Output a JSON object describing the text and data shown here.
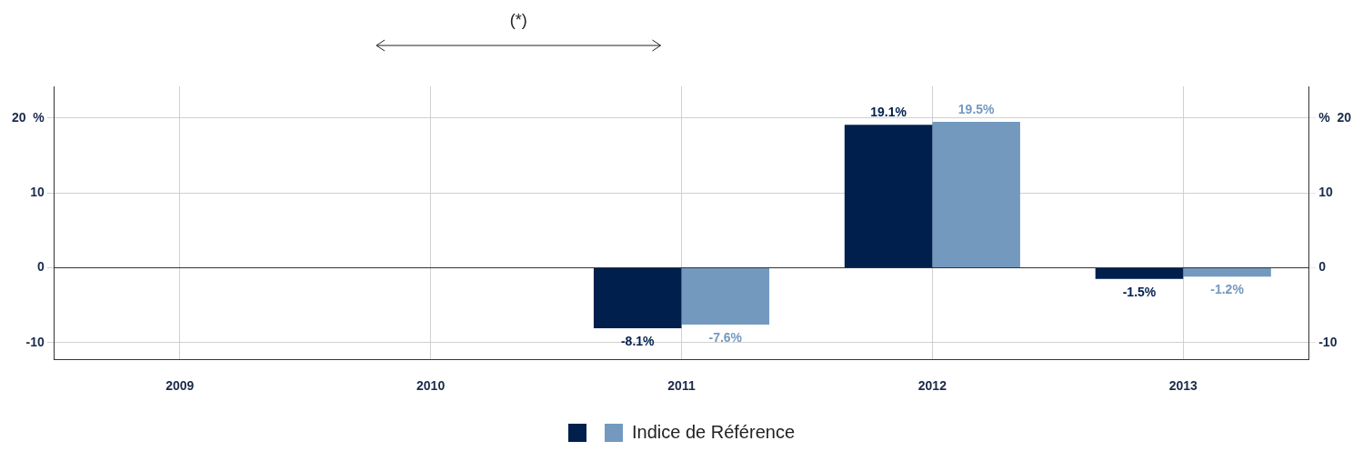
{
  "chart_data": {
    "type": "bar",
    "categories": [
      "2009",
      "2010",
      "2011",
      "2012",
      "2013"
    ],
    "series": [
      {
        "color": "#001f4d",
        "values": [
          null,
          null,
          -8.1,
          19.1,
          -1.5
        ],
        "value_labels": [
          null,
          null,
          "-8.1%",
          "19.1%",
          "-1.5%"
        ]
      },
      {
        "name": "Indice de Référence",
        "color": "#7399bf",
        "values": [
          null,
          null,
          -7.6,
          19.5,
          -1.2
        ],
        "value_labels": [
          null,
          null,
          "-7.6%",
          "19.5%",
          "-1.2%"
        ]
      }
    ],
    "ylim": [
      -12.25,
      24.25
    ],
    "yticks": [
      -10,
      0,
      10,
      {
        "value": 20,
        "label": "20  %"
      }
    ],
    "y2lim": [
      -12.25,
      24.25
    ],
    "y2ticks": [
      -10,
      0,
      10,
      {
        "value": 20,
        "label": "%  20"
      }
    ],
    "annotations": [
      "(*)"
    ],
    "grid": true,
    "legend": "bottom"
  }
}
